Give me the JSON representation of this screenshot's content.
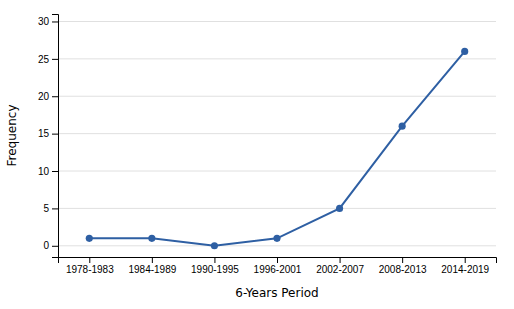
{
  "chart_data": {
    "type": "line",
    "categories": [
      "1978-1983",
      "1984-1989",
      "1990-1995",
      "1996-2001",
      "2002-2007",
      "2008-2013",
      "2014-2019"
    ],
    "values": [
      1,
      1,
      0,
      1,
      5,
      16,
      26
    ],
    "color": "#2E5FA3",
    "marker": "circle",
    "xlabel": "6-Years Period",
    "ylabel": "Frequency",
    "ylim": [
      -1.5,
      31
    ],
    "yticks": [
      0,
      5,
      10,
      15,
      20,
      25,
      30
    ],
    "grid": true
  }
}
